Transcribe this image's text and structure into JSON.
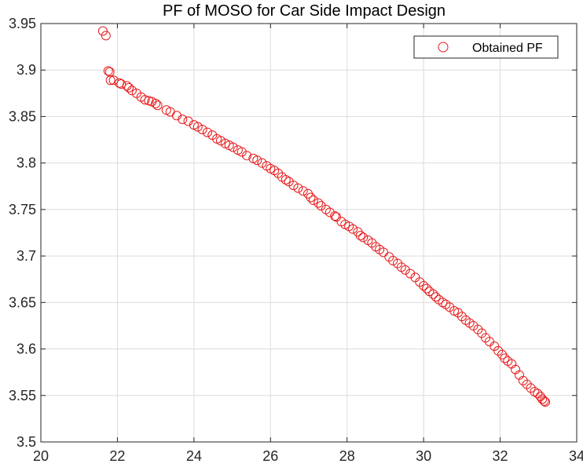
{
  "chart_data": {
    "type": "scatter",
    "title": "PF of MOSO for Car Side Impact Design",
    "xlabel": "",
    "ylabel": "",
    "xlim": [
      20,
      34
    ],
    "ylim": [
      3.5,
      3.95
    ],
    "xticks": [
      "20",
      "22",
      "24",
      "26",
      "28",
      "30",
      "32",
      "34"
    ],
    "yticks": [
      "3.5",
      "3.55",
      "3.6",
      "3.65",
      "3.7",
      "3.75",
      "3.8",
      "3.85",
      "3.9",
      "3.95"
    ],
    "grid": true,
    "legend": {
      "position": "top-right",
      "entries": [
        "Obtained PF"
      ]
    },
    "series": [
      {
        "name": "Obtained PF",
        "color": "#e8191a",
        "marker": "open-circle",
        "points": [
          [
            21.62,
            3.942
          ],
          [
            21.7,
            3.937
          ],
          [
            21.76,
            3.899
          ],
          [
            21.8,
            3.898
          ],
          [
            21.82,
            3.889
          ],
          [
            21.9,
            3.889
          ],
          [
            22.05,
            3.886
          ],
          [
            22.1,
            3.885
          ],
          [
            22.25,
            3.883
          ],
          [
            22.3,
            3.881
          ],
          [
            22.38,
            3.878
          ],
          [
            22.5,
            3.875
          ],
          [
            22.62,
            3.871
          ],
          [
            22.72,
            3.868
          ],
          [
            22.82,
            3.867
          ],
          [
            22.9,
            3.866
          ],
          [
            23.0,
            3.864
          ],
          [
            23.05,
            3.862
          ],
          [
            23.28,
            3.857
          ],
          [
            23.38,
            3.855
          ],
          [
            23.55,
            3.851
          ],
          [
            23.7,
            3.847
          ],
          [
            23.85,
            3.845
          ],
          [
            24.0,
            3.841
          ],
          [
            24.1,
            3.839
          ],
          [
            24.22,
            3.836
          ],
          [
            24.35,
            3.833
          ],
          [
            24.48,
            3.83
          ],
          [
            24.6,
            3.826
          ],
          [
            24.7,
            3.824
          ],
          [
            24.82,
            3.821
          ],
          [
            24.92,
            3.819
          ],
          [
            25.02,
            3.817
          ],
          [
            25.15,
            3.814
          ],
          [
            25.25,
            3.812
          ],
          [
            25.38,
            3.808
          ],
          [
            25.55,
            3.805
          ],
          [
            25.65,
            3.803
          ],
          [
            25.78,
            3.8
          ],
          [
            25.9,
            3.797
          ],
          [
            26.0,
            3.794
          ],
          [
            26.1,
            3.792
          ],
          [
            26.2,
            3.789
          ],
          [
            26.3,
            3.785
          ],
          [
            26.4,
            3.782
          ],
          [
            26.48,
            3.78
          ],
          [
            26.6,
            3.776
          ],
          [
            26.72,
            3.773
          ],
          [
            26.85,
            3.77
          ],
          [
            26.98,
            3.767
          ],
          [
            27.05,
            3.763
          ],
          [
            27.12,
            3.76
          ],
          [
            27.25,
            3.757
          ],
          [
            27.32,
            3.754
          ],
          [
            27.45,
            3.75
          ],
          [
            27.55,
            3.747
          ],
          [
            27.68,
            3.743
          ],
          [
            27.72,
            3.742
          ],
          [
            27.85,
            3.737
          ],
          [
            27.95,
            3.734
          ],
          [
            28.05,
            3.732
          ],
          [
            28.15,
            3.729
          ],
          [
            28.28,
            3.726
          ],
          [
            28.35,
            3.722
          ],
          [
            28.42,
            3.72
          ],
          [
            28.55,
            3.717
          ],
          [
            28.65,
            3.714
          ],
          [
            28.75,
            3.71
          ],
          [
            28.85,
            3.707
          ],
          [
            28.95,
            3.704
          ],
          [
            29.1,
            3.699
          ],
          [
            29.2,
            3.695
          ],
          [
            29.32,
            3.692
          ],
          [
            29.42,
            3.688
          ],
          [
            29.52,
            3.685
          ],
          [
            29.65,
            3.681
          ],
          [
            29.78,
            3.677
          ],
          [
            29.9,
            3.672
          ],
          [
            30.0,
            3.668
          ],
          [
            30.08,
            3.665
          ],
          [
            30.15,
            3.662
          ],
          [
            30.25,
            3.659
          ],
          [
            30.32,
            3.656
          ],
          [
            30.4,
            3.653
          ],
          [
            30.5,
            3.65
          ],
          [
            30.58,
            3.648
          ],
          [
            30.68,
            3.645
          ],
          [
            30.8,
            3.641
          ],
          [
            30.9,
            3.639
          ],
          [
            31.0,
            3.635
          ],
          [
            31.1,
            3.631
          ],
          [
            31.2,
            3.628
          ],
          [
            31.3,
            3.625
          ],
          [
            31.42,
            3.621
          ],
          [
            31.52,
            3.617
          ],
          [
            31.62,
            3.612
          ],
          [
            31.72,
            3.608
          ],
          [
            31.85,
            3.603
          ],
          [
            31.95,
            3.598
          ],
          [
            32.05,
            3.594
          ],
          [
            32.12,
            3.59
          ],
          [
            32.2,
            3.587
          ],
          [
            32.3,
            3.584
          ],
          [
            32.4,
            3.578
          ],
          [
            32.5,
            3.572
          ],
          [
            32.6,
            3.566
          ],
          [
            32.7,
            3.562
          ],
          [
            32.8,
            3.558
          ],
          [
            32.9,
            3.554
          ],
          [
            32.98,
            3.552
          ],
          [
            33.05,
            3.549
          ],
          [
            33.1,
            3.546
          ],
          [
            33.15,
            3.544
          ],
          [
            33.18,
            3.543
          ]
        ]
      }
    ]
  }
}
